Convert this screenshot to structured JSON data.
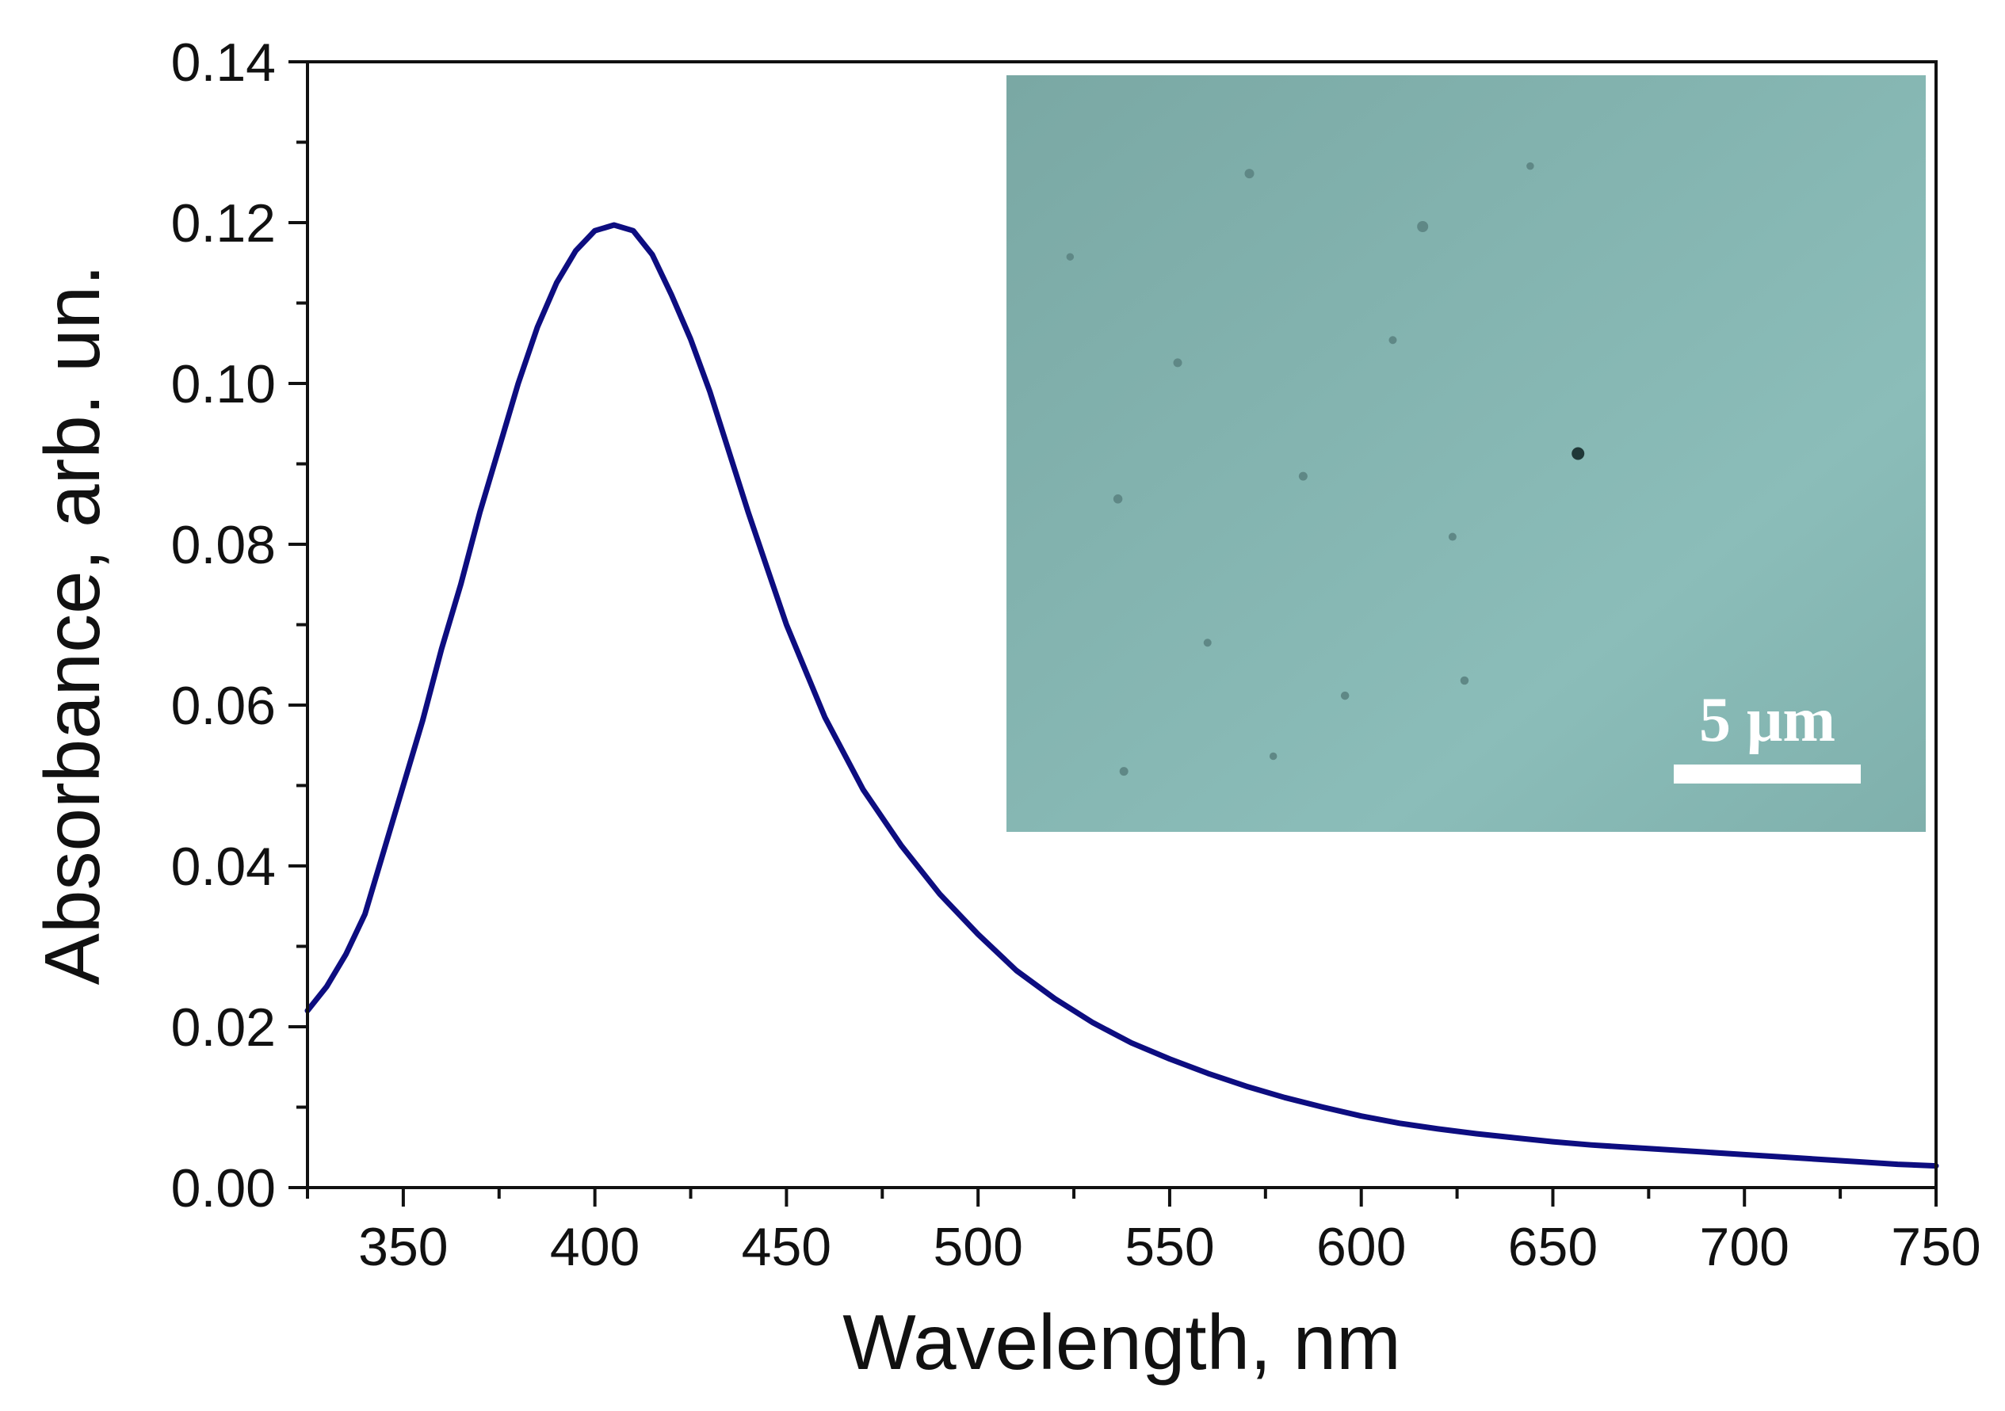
{
  "chart_data": {
    "type": "line",
    "xlabel": "Wavelength, nm",
    "ylabel": "Absorbance, arb. un.",
    "xlim": [
      325,
      750
    ],
    "ylim": [
      0,
      0.14
    ],
    "x_ticks": [
      350,
      400,
      450,
      500,
      550,
      600,
      650,
      700,
      750
    ],
    "x_tick_labels": [
      "350",
      "400",
      "450",
      "500",
      "550",
      "600",
      "650",
      "700",
      "750"
    ],
    "x_minor_step": 25,
    "y_ticks": [
      0,
      0.02,
      0.04,
      0.06,
      0.08,
      0.1,
      0.12,
      0.14
    ],
    "y_tick_labels": [
      "0.00",
      "0.02",
      "0.04",
      "0.06",
      "0.08",
      "0.10",
      "0.12",
      "0.14"
    ],
    "y_minor_step": 0.01,
    "grid": false,
    "line_color": "#0d0d80",
    "series": [
      {
        "name": "Absorbance",
        "x": [
          325,
          330,
          335,
          340,
          345,
          350,
          355,
          360,
          365,
          370,
          375,
          380,
          385,
          390,
          395,
          400,
          405,
          410,
          415,
          420,
          425,
          430,
          435,
          440,
          445,
          450,
          460,
          470,
          480,
          490,
          500,
          510,
          520,
          530,
          540,
          550,
          560,
          570,
          580,
          590,
          600,
          610,
          620,
          630,
          640,
          650,
          660,
          670,
          680,
          690,
          700,
          710,
          720,
          730,
          740,
          750
        ],
        "values": [
          0.022,
          0.025,
          0.029,
          0.034,
          0.042,
          0.05,
          0.058,
          0.067,
          0.075,
          0.084,
          0.092,
          0.1,
          0.107,
          0.1125,
          0.1165,
          0.119,
          0.1197,
          0.119,
          0.116,
          0.111,
          0.1055,
          0.099,
          0.0915,
          0.084,
          0.077,
          0.07,
          0.0585,
          0.0495,
          0.0425,
          0.0365,
          0.0315,
          0.027,
          0.0235,
          0.0205,
          0.018,
          0.016,
          0.0142,
          0.0126,
          0.0112,
          0.01,
          0.0089,
          0.008,
          0.0073,
          0.0067,
          0.0062,
          0.0057,
          0.0053,
          0.005,
          0.0047,
          0.0044,
          0.0041,
          0.0038,
          0.0035,
          0.0032,
          0.0029,
          0.0027
        ]
      }
    ],
    "inset": {
      "type": "micrograph",
      "scale_bar_label": "5 μm",
      "colors": [
        "#7aa8a4",
        "#8bbdb9",
        "#7fb0ac"
      ]
    }
  }
}
